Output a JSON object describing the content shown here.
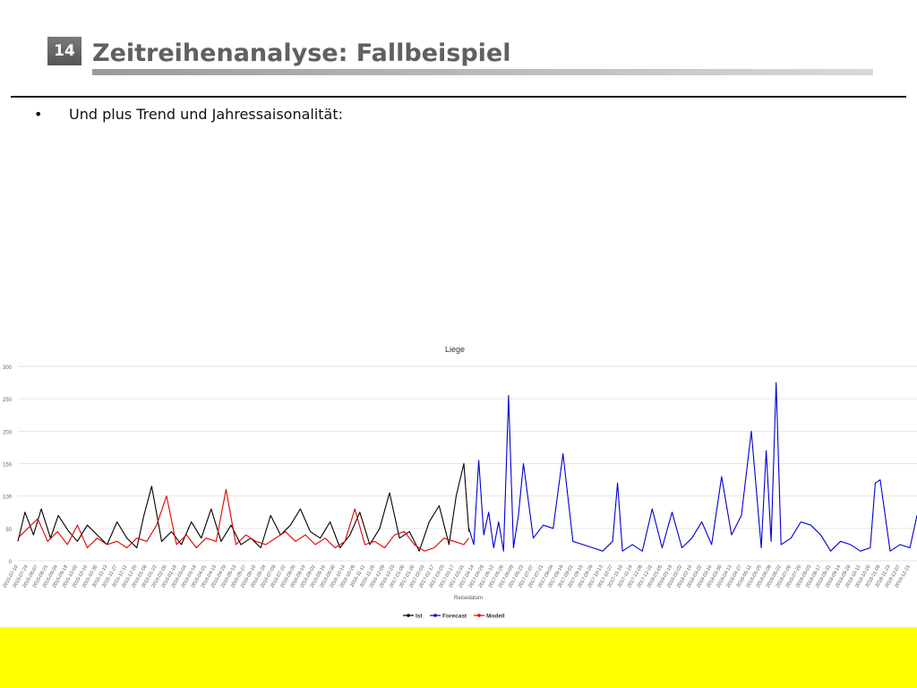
{
  "slide": {
    "number": "14",
    "title": "Zeitreihenanalyse: Fallbeispiel",
    "bullet": "Und plus Trend und Jahressaisonalität:"
  },
  "colors": {
    "ist": "#000000",
    "forecast": "#0000d4",
    "modell": "#e00000",
    "footer": "#ffff00"
  },
  "chart_data": {
    "type": "line",
    "title": "Liege",
    "xlabel": "Reisedatum",
    "ylabel": "",
    "ylim": [
      0,
      300
    ],
    "yticks": [
      0,
      50,
      100,
      150,
      200,
      250,
      300
    ],
    "grid": true,
    "legend_position": "bottom-center",
    "x_range": [
      "2015-07-10",
      "2018-12-31"
    ],
    "xtick_labels": [
      "2015-07-10",
      "2015-07-24",
      "2015-08-07",
      "2015-08-21",
      "2015-09-04",
      "2015-09-18",
      "2015-10-02",
      "2015-10-16",
      "2015-10-30",
      "2015-11-13",
      "2015-11-27",
      "2015-12-11",
      "2015-12-25",
      "2016-01-08",
      "2016-01-22",
      "2016-02-05",
      "2016-02-19",
      "2016-03-04",
      "2016-03-18",
      "2016-04-01",
      "2016-04-15",
      "2016-04-29",
      "2016-05-13",
      "2016-05-27",
      "2016-06-10",
      "2016-06-24",
      "2016-07-08",
      "2016-07-22",
      "2016-08-05",
      "2016-08-19",
      "2016-09-02",
      "2016-09-16",
      "2016-09-30",
      "2016-10-14",
      "2016-10-28",
      "2016-11-11",
      "2016-11-25",
      "2016-12-09",
      "2016-12-23",
      "2017-01-06",
      "2017-01-20",
      "2017-02-03",
      "2017-02-17",
      "2017-03-03",
      "2017-03-17",
      "2017-03-31",
      "2017-04-14",
      "2017-04-28",
      "2017-05-12",
      "2017-05-26",
      "2017-06-09",
      "2017-06-23",
      "2017-07-07",
      "2017-07-21",
      "2017-08-04",
      "2017-08-18",
      "2017-09-01",
      "2017-09-15",
      "2017-09-29",
      "2017-10-13",
      "2017-10-27",
      "2017-11-10",
      "2017-11-24",
      "2017-12-08",
      "2017-12-22",
      "2018-01-05",
      "2018-01-19",
      "2018-02-02",
      "2018-02-16",
      "2018-03-02",
      "2018-03-16",
      "2018-03-30",
      "2018-04-13",
      "2018-04-27",
      "2018-05-11",
      "2018-05-25",
      "2018-06-08",
      "2018-06-22",
      "2018-07-06",
      "2018-07-20",
      "2018-08-03",
      "2018-08-17",
      "2018-08-31",
      "2018-09-14",
      "2018-09-28",
      "2018-10-12",
      "2018-10-26",
      "2018-11-09",
      "2018-11-23",
      "2018-12-07",
      "2018-12-21"
    ],
    "series": [
      {
        "name": "Ist",
        "color": "#000000",
        "x": [
          "2015-07-10",
          "2015-07-20",
          "2015-08-01",
          "2015-08-12",
          "2015-08-25",
          "2015-09-05",
          "2015-09-20",
          "2015-10-02",
          "2015-10-16",
          "2015-10-30",
          "2015-11-13",
          "2015-11-27",
          "2015-12-11",
          "2015-12-25",
          "2016-01-04",
          "2016-01-15",
          "2016-01-29",
          "2016-02-12",
          "2016-02-26",
          "2016-03-11",
          "2016-03-25",
          "2016-04-08",
          "2016-04-22",
          "2016-05-06",
          "2016-05-20",
          "2016-06-03",
          "2016-06-17",
          "2016-07-01",
          "2016-07-15",
          "2016-07-29",
          "2016-08-12",
          "2016-08-26",
          "2016-09-09",
          "2016-09-23",
          "2016-10-07",
          "2016-10-21",
          "2016-11-04",
          "2016-11-18",
          "2016-12-02",
          "2016-12-16",
          "2016-12-30",
          "2017-01-13",
          "2017-01-27",
          "2017-02-10",
          "2017-02-24",
          "2017-03-10",
          "2017-03-20",
          "2017-03-31",
          "2017-04-07"
        ],
        "y": [
          30,
          75,
          40,
          80,
          35,
          70,
          45,
          30,
          55,
          40,
          25,
          60,
          35,
          20,
          70,
          115,
          30,
          45,
          25,
          60,
          35,
          80,
          30,
          55,
          25,
          35,
          20,
          70,
          40,
          55,
          80,
          45,
          35,
          60,
          20,
          40,
          75,
          25,
          50,
          105,
          35,
          45,
          15,
          60,
          85,
          25,
          100,
          150,
          45
        ]
      },
      {
        "name": "Forecast",
        "color": "#0000d4",
        "x": [
          "2017-04-07",
          "2017-04-14",
          "2017-04-21",
          "2017-04-28",
          "2017-05-05",
          "2017-05-12",
          "2017-05-19",
          "2017-05-26",
          "2017-06-02",
          "2017-06-09",
          "2017-06-16",
          "2017-06-23",
          "2017-07-07",
          "2017-07-21",
          "2017-08-04",
          "2017-08-18",
          "2017-09-01",
          "2017-09-15",
          "2017-09-29",
          "2017-10-13",
          "2017-10-27",
          "2017-11-03",
          "2017-11-10",
          "2017-11-24",
          "2017-12-08",
          "2017-12-22",
          "2018-01-05",
          "2018-01-19",
          "2018-02-02",
          "2018-02-16",
          "2018-03-02",
          "2018-03-16",
          "2018-03-30",
          "2018-04-13",
          "2018-04-27",
          "2018-05-11",
          "2018-05-25",
          "2018-06-01",
          "2018-06-08",
          "2018-06-15",
          "2018-06-22",
          "2018-07-06",
          "2018-07-20",
          "2018-08-03",
          "2018-08-17",
          "2018-08-31",
          "2018-09-14",
          "2018-09-28",
          "2018-10-12",
          "2018-10-26",
          "2018-11-02",
          "2018-11-09",
          "2018-11-23",
          "2018-12-07",
          "2018-12-21",
          "2018-12-31"
        ],
        "y": [
          50,
          25,
          155,
          40,
          75,
          20,
          60,
          15,
          255,
          20,
          70,
          150,
          35,
          55,
          50,
          165,
          30,
          25,
          20,
          15,
          30,
          120,
          15,
          25,
          15,
          80,
          20,
          75,
          20,
          35,
          60,
          25,
          130,
          40,
          70,
          200,
          20,
          170,
          30,
          275,
          25,
          35,
          60,
          55,
          40,
          15,
          30,
          25,
          15,
          20,
          120,
          125,
          15,
          25,
          20,
          70
        ]
      },
      {
        "name": "Modell",
        "color": "#e00000",
        "x": [
          "2015-07-10",
          "2015-07-24",
          "2015-08-07",
          "2015-08-21",
          "2015-09-04",
          "2015-09-18",
          "2015-10-02",
          "2015-10-16",
          "2015-10-30",
          "2015-11-13",
          "2015-11-27",
          "2015-12-11",
          "2015-12-25",
          "2016-01-08",
          "2016-01-22",
          "2016-02-05",
          "2016-02-19",
          "2016-03-04",
          "2016-03-18",
          "2016-04-01",
          "2016-04-15",
          "2016-04-29",
          "2016-05-13",
          "2016-05-27",
          "2016-06-10",
          "2016-06-24",
          "2016-07-08",
          "2016-07-22",
          "2016-08-05",
          "2016-08-19",
          "2016-09-02",
          "2016-09-16",
          "2016-09-30",
          "2016-10-14",
          "2016-10-28",
          "2016-11-11",
          "2016-11-25",
          "2016-12-09",
          "2016-12-23",
          "2017-01-06",
          "2017-01-20",
          "2017-02-03",
          "2017-02-17",
          "2017-03-03",
          "2017-03-17",
          "2017-03-31",
          "2017-04-07"
        ],
        "y": [
          35,
          50,
          65,
          30,
          45,
          25,
          55,
          20,
          35,
          25,
          30,
          20,
          35,
          30,
          55,
          100,
          25,
          40,
          20,
          35,
          30,
          110,
          25,
          40,
          30,
          25,
          35,
          45,
          30,
          40,
          25,
          35,
          20,
          30,
          80,
          25,
          30,
          20,
          40,
          45,
          25,
          15,
          20,
          35,
          30,
          25,
          35
        ]
      }
    ]
  }
}
